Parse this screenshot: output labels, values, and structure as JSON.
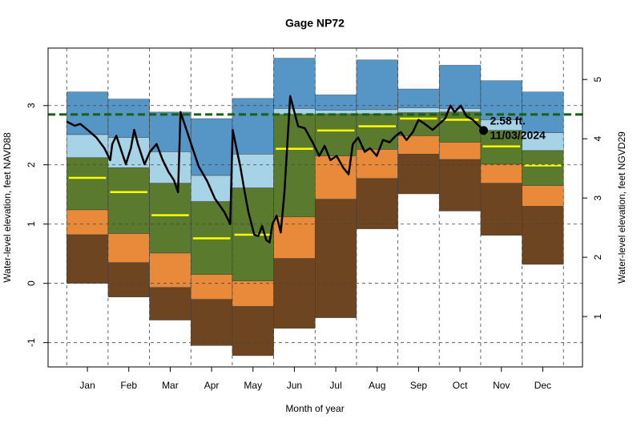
{
  "chart_data": {
    "type": "band",
    "title": "Gage NP72",
    "x_label": "Month of year",
    "y_label": "Water-level elevation, feet NAVD88",
    "y2_label": "Water-level elevation, feet NGVD29",
    "categories": [
      "Jan",
      "Feb",
      "Mar",
      "Apr",
      "May",
      "Jun",
      "Jul",
      "Aug",
      "Sep",
      "Oct",
      "Nov",
      "Dec"
    ],
    "xlim": [
      -0.45,
      12.46
    ],
    "ylim": [
      -1.41,
      3.97
    ],
    "yticks": [
      -1,
      0,
      1,
      2,
      3
    ],
    "y2lim": [
      0.15,
      5.53
    ],
    "y2ticks": [
      1,
      2,
      3,
      4,
      5
    ],
    "grid": true,
    "levels": [
      {
        "values": [
          3.23,
          3.11,
          2.89,
          2.78,
          3.12,
          3.8,
          3.18,
          3.77,
          3.28,
          3.68,
          3.42,
          3.23
        ]
      },
      {
        "values": [
          2.51,
          2.46,
          2.22,
          1.82,
          2.18,
          2.95,
          2.92,
          2.93,
          2.96,
          2.95,
          2.76,
          2.54
        ]
      },
      {
        "values": [
          2.12,
          1.95,
          1.69,
          1.38,
          1.61,
          2.85,
          2.86,
          2.86,
          2.88,
          2.89,
          2.58,
          2.24
        ]
      },
      {
        "values": [
          1.24,
          0.84,
          0.51,
          0.15,
          0.04,
          1.12,
          2.15,
          2.26,
          2.49,
          2.38,
          2.01,
          1.65
        ]
      },
      {
        "values": [
          0.82,
          0.35,
          -0.07,
          -0.27,
          -0.39,
          0.42,
          1.42,
          1.77,
          2.18,
          2.09,
          1.69,
          1.3
        ]
      },
      {
        "values": [
          0.0,
          -0.23,
          -0.62,
          -1.05,
          -1.22,
          -0.76,
          -0.58,
          0.92,
          1.51,
          1.22,
          0.81,
          0.32
        ]
      }
    ],
    "band_colors": [
      "#5596c7",
      "#a6d4e6",
      "#5a7a2e",
      "#e88a3a",
      "#6e4521"
    ],
    "median": {
      "color": "#ffff00",
      "values": [
        1.78,
        1.54,
        1.15,
        0.76,
        0.82,
        2.27,
        2.58,
        2.65,
        2.78,
        2.76,
        2.31,
        1.99
      ]
    },
    "ref_line": {
      "value": 2.85,
      "color": "#1a5e1a"
    },
    "line": {
      "color": "#000000",
      "x": [
        0,
        0.19,
        0.33,
        0.52,
        0.72,
        0.91,
        1.05,
        1.1,
        1.2,
        1.3,
        1.43,
        1.55,
        1.63,
        1.72,
        1.88,
        2.01,
        2.17,
        2.32,
        2.46,
        2.59,
        2.69,
        2.75,
        2.88,
        3.04,
        3.19,
        3.39,
        3.58,
        3.81,
        3.95,
        4.01,
        4.1,
        4.2,
        4.3,
        4.39,
        4.53,
        4.63,
        4.72,
        4.82,
        4.9,
        4.97,
        5.07,
        5.17,
        5.26,
        5.4,
        5.5,
        5.59,
        5.75,
        5.94,
        6.1,
        6.23,
        6.37,
        6.52,
        6.68,
        6.81,
        6.91,
        7.04,
        7.2,
        7.33,
        7.49,
        7.64,
        7.8,
        7.95,
        8.07,
        8.21,
        8.36,
        8.5,
        8.65,
        8.84,
        9.0,
        9.14,
        9.27,
        9.37,
        9.52,
        9.66,
        9.81,
        9.97,
        10.07
      ],
      "values": [
        2.73,
        2.66,
        2.69,
        2.58,
        2.46,
        2.28,
        2.08,
        2.35,
        2.49,
        2.28,
        2.01,
        2.28,
        2.59,
        2.35,
        2.01,
        2.22,
        2.35,
        2.08,
        1.88,
        1.74,
        1.54,
        2.89,
        2.62,
        2.28,
        1.97,
        1.73,
        1.43,
        1.2,
        1.0,
        2.59,
        2.28,
        1.95,
        1.54,
        1.2,
        0.82,
        0.8,
        0.97,
        0.73,
        0.69,
        1.0,
        1.14,
        0.86,
        1.54,
        3.16,
        2.89,
        2.65,
        2.62,
        2.38,
        2.15,
        2.32,
        2.08,
        2.15,
        1.95,
        1.84,
        2.35,
        2.46,
        2.22,
        2.28,
        2.15,
        2.42,
        2.38,
        2.49,
        2.55,
        2.42,
        2.55,
        2.76,
        2.69,
        2.59,
        2.69,
        2.78,
        3.0,
        2.89,
        3.0,
        2.82,
        2.76,
        2.65,
        2.58
      ]
    },
    "current": {
      "x": 10.07,
      "values": [
        2.58
      ],
      "value_labels": [
        "2.58 ft."
      ],
      "date_label": "11/03/2024"
    }
  }
}
